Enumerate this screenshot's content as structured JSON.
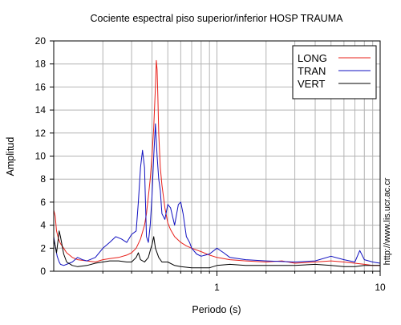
{
  "chart_data": {
    "type": "line",
    "title": "Cociente espectral piso superior/inferior  HOSP TRAUMA",
    "xlabel": "Periodo (s)",
    "ylabel": "Amplitud",
    "xscale": "log",
    "xlim": [
      0.1,
      10
    ],
    "ylim": [
      0,
      20
    ],
    "grid": true,
    "legend_position": "top-right",
    "x_ticks": [
      1,
      10
    ],
    "x_tick_labels": [
      "1",
      "10"
    ],
    "y_ticks": [
      0,
      2,
      4,
      6,
      8,
      10,
      12,
      14,
      16,
      18,
      20
    ],
    "y_tick_labels": [
      "0",
      "2",
      "4",
      "6",
      "8",
      "10",
      "12",
      "14",
      "16",
      "18",
      "20"
    ],
    "series": [
      {
        "name": "LONG",
        "color": "#e8201a",
        "x": [
          0.1,
          0.102,
          0.104,
          0.107,
          0.11,
          0.115,
          0.12,
          0.13,
          0.14,
          0.16,
          0.18,
          0.2,
          0.22,
          0.25,
          0.28,
          0.3,
          0.32,
          0.34,
          0.36,
          0.37,
          0.38,
          0.39,
          0.4,
          0.41,
          0.42,
          0.425,
          0.43,
          0.435,
          0.44,
          0.45,
          0.46,
          0.48,
          0.5,
          0.52,
          0.55,
          0.6,
          0.65,
          0.7,
          0.8,
          0.9,
          1.0,
          1.1,
          1.2,
          1.5,
          2.0,
          2.5,
          3.0,
          4.0,
          5.0,
          6.0,
          7.0,
          8.0,
          9.0,
          10.0
        ],
        "y": [
          5.3,
          4.8,
          3.5,
          2.8,
          2.4,
          2.0,
          1.6,
          1.2,
          1.0,
          0.9,
          0.8,
          1.0,
          1.1,
          1.2,
          1.4,
          1.6,
          2.0,
          2.8,
          4.0,
          5.0,
          6.5,
          8.0,
          10.0,
          12.5,
          16.0,
          18.3,
          17.5,
          15.0,
          12.0,
          9.0,
          7.5,
          5.5,
          4.2,
          3.6,
          3.0,
          2.5,
          2.2,
          2.0,
          1.7,
          1.4,
          1.2,
          1.1,
          1.0,
          0.9,
          0.8,
          0.9,
          0.7,
          0.8,
          0.9,
          0.8,
          0.7,
          0.6,
          0.5,
          0.5
        ]
      },
      {
        "name": "TRAN",
        "color": "#1010c0",
        "x": [
          0.1,
          0.102,
          0.105,
          0.108,
          0.11,
          0.115,
          0.12,
          0.13,
          0.14,
          0.15,
          0.16,
          0.18,
          0.2,
          0.22,
          0.24,
          0.26,
          0.28,
          0.3,
          0.32,
          0.33,
          0.34,
          0.35,
          0.36,
          0.37,
          0.38,
          0.39,
          0.4,
          0.41,
          0.42,
          0.43,
          0.44,
          0.45,
          0.46,
          0.48,
          0.5,
          0.52,
          0.55,
          0.58,
          0.6,
          0.62,
          0.65,
          0.68,
          0.7,
          0.75,
          0.8,
          0.9,
          1.0,
          1.1,
          1.2,
          1.5,
          2.0,
          3.0,
          4.0,
          5.0,
          6.0,
          7.0,
          7.5,
          8.0,
          9.0,
          10.0
        ],
        "y": [
          3.0,
          2.2,
          1.3,
          0.8,
          0.6,
          0.5,
          0.6,
          0.8,
          1.2,
          1.0,
          0.9,
          1.2,
          2.0,
          2.5,
          3.0,
          2.8,
          2.5,
          3.2,
          3.5,
          6.0,
          9.0,
          10.5,
          9.0,
          3.0,
          2.5,
          4.0,
          6.5,
          10.0,
          12.8,
          10.0,
          8.0,
          7.0,
          5.0,
          4.5,
          5.8,
          5.5,
          4.0,
          5.8,
          6.0,
          5.0,
          3.0,
          2.5,
          2.0,
          1.5,
          1.3,
          1.5,
          2.0,
          1.6,
          1.2,
          1.0,
          0.9,
          0.8,
          0.9,
          1.3,
          1.0,
          0.8,
          1.8,
          1.0,
          0.8,
          0.7
        ]
      },
      {
        "name": "VERT",
        "color": "#000000",
        "x": [
          0.1,
          0.102,
          0.104,
          0.106,
          0.108,
          0.11,
          0.115,
          0.12,
          0.13,
          0.14,
          0.16,
          0.18,
          0.2,
          0.22,
          0.25,
          0.28,
          0.3,
          0.32,
          0.33,
          0.34,
          0.36,
          0.38,
          0.39,
          0.4,
          0.41,
          0.42,
          0.44,
          0.46,
          0.5,
          0.55,
          0.6,
          0.7,
          0.8,
          0.9,
          1.0,
          1.2,
          1.5,
          2.0,
          3.0,
          4.0,
          5.0,
          6.0,
          7.0,
          8.0,
          9.0,
          10.0
        ],
        "y": [
          2.8,
          2.2,
          1.6,
          2.5,
          3.5,
          3.0,
          1.5,
          0.8,
          0.5,
          0.4,
          0.5,
          0.7,
          0.8,
          0.9,
          0.9,
          0.8,
          0.8,
          1.2,
          1.6,
          1.0,
          0.8,
          1.2,
          1.8,
          2.3,
          3.0,
          2.0,
          1.2,
          0.8,
          0.8,
          0.5,
          0.4,
          0.3,
          0.3,
          0.3,
          0.5,
          0.6,
          0.5,
          0.5,
          0.5,
          0.6,
          0.5,
          0.4,
          0.4,
          0.5,
          0.5,
          0.5
        ]
      }
    ],
    "side_text": "http://www.lis.ucr.ac.cr"
  }
}
